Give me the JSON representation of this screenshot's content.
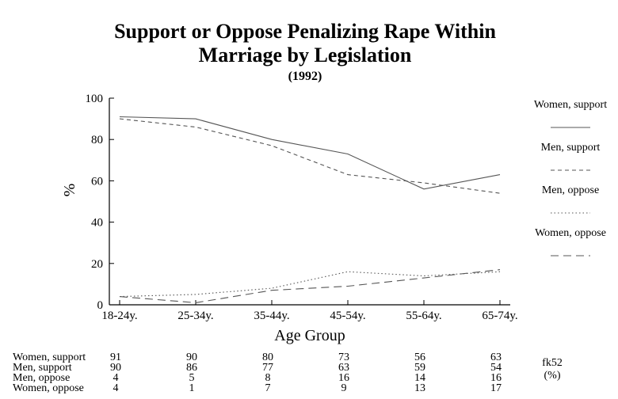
{
  "chart_data": {
    "type": "line",
    "title_line1": "Support or Oppose Penalizing Rape Within",
    "title_line2": "Marriage by Legislation",
    "subtitle": "(1992)",
    "xlabel": "Age Group",
    "ylabel": "%",
    "ylim": [
      0,
      100
    ],
    "yticks": [
      0,
      20,
      40,
      60,
      80,
      100
    ],
    "categories": [
      "18-24y.",
      "25-34y.",
      "35-44y.",
      "45-54y.",
      "55-64y.",
      "65-74y."
    ],
    "legend_position": "right",
    "series": [
      {
        "name": "Women, support",
        "values": [
          91,
          90,
          80,
          73,
          56,
          63
        ],
        "dash": "solid",
        "color": "#555555"
      },
      {
        "name": "Men, support",
        "values": [
          90,
          86,
          77,
          63,
          59,
          54
        ],
        "dash": "dashed",
        "color": "#555555"
      },
      {
        "name": "Men, oppose",
        "values": [
          4,
          5,
          8,
          16,
          14,
          16
        ],
        "dash": "dotted",
        "color": "#555555"
      },
      {
        "name": "Women, oppose",
        "values": [
          4,
          1,
          7,
          9,
          13,
          17
        ],
        "dash": "longdash",
        "color": "#555555"
      }
    ],
    "table_rows": [
      {
        "label": "Women, support",
        "values": [
          "91",
          "90",
          "80",
          "73",
          "56",
          "63"
        ]
      },
      {
        "label": "Men, support",
        "values": [
          "90",
          "86",
          "77",
          "63",
          "59",
          "54"
        ]
      },
      {
        "label": "Men, oppose",
        "values": [
          "4",
          "5",
          "8",
          "16",
          "14",
          "16"
        ]
      },
      {
        "label": "Women, oppose",
        "values": [
          "4",
          "1",
          "7",
          "9",
          "13",
          "17"
        ]
      }
    ],
    "source_code": "fk52",
    "unit_note": "(%)"
  }
}
